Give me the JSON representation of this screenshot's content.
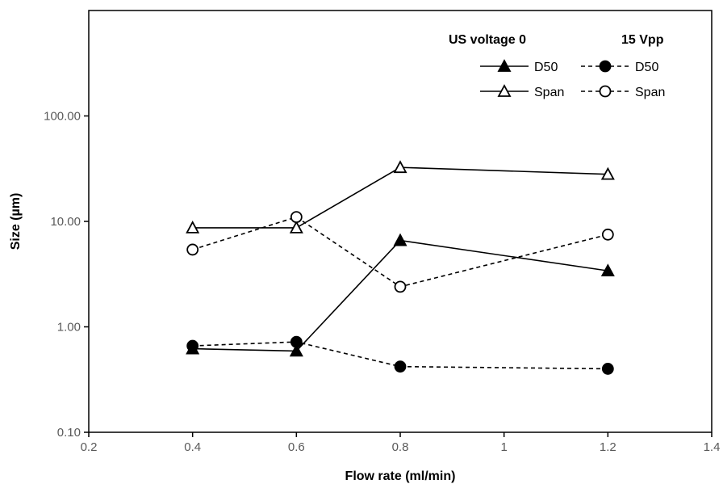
{
  "chart_data": {
    "type": "line",
    "xlabel": "Flow rate (ml/min)",
    "ylabel": "Size (µm)",
    "xlim": [
      0.2,
      1.4
    ],
    "ylim": [
      0.1,
      1000
    ],
    "y_scale": "log",
    "x_ticks": [
      "0.2",
      "0.4",
      "0.6",
      "0.8",
      "1",
      "1.2",
      "1.4"
    ],
    "y_ticks": [
      "0.10",
      "1.00",
      "10.00",
      "100.00"
    ],
    "legend": {
      "placement": "top-right",
      "header_left": "US voltage  0",
      "header_right": "15 Vpp"
    },
    "series": [
      {
        "name": "D50",
        "group": "0",
        "line": "solid",
        "marker": "filled-triangle",
        "x": [
          0.4,
          0.6,
          0.8,
          1.2
        ],
        "y": [
          0.62,
          0.59,
          6.6,
          3.4
        ]
      },
      {
        "name": "Span",
        "group": "0",
        "line": "solid",
        "marker": "open-triangle",
        "x": [
          0.4,
          0.6,
          0.8,
          1.2
        ],
        "y": [
          8.7,
          8.7,
          32.5,
          28.0
        ]
      },
      {
        "name": "D50",
        "group": "15 Vpp",
        "line": "dashed",
        "marker": "filled-circle",
        "x": [
          0.4,
          0.6,
          0.8,
          1.2
        ],
        "y": [
          0.66,
          0.72,
          0.42,
          0.4
        ]
      },
      {
        "name": "Span",
        "group": "15 Vpp",
        "line": "dashed",
        "marker": "open-circle",
        "x": [
          0.4,
          0.6,
          0.8,
          1.2
        ],
        "y": [
          5.4,
          11.0,
          2.4,
          7.5
        ]
      }
    ],
    "colors": {
      "line": "#000000",
      "tick_text": "#595959",
      "axis": "#000000"
    }
  }
}
